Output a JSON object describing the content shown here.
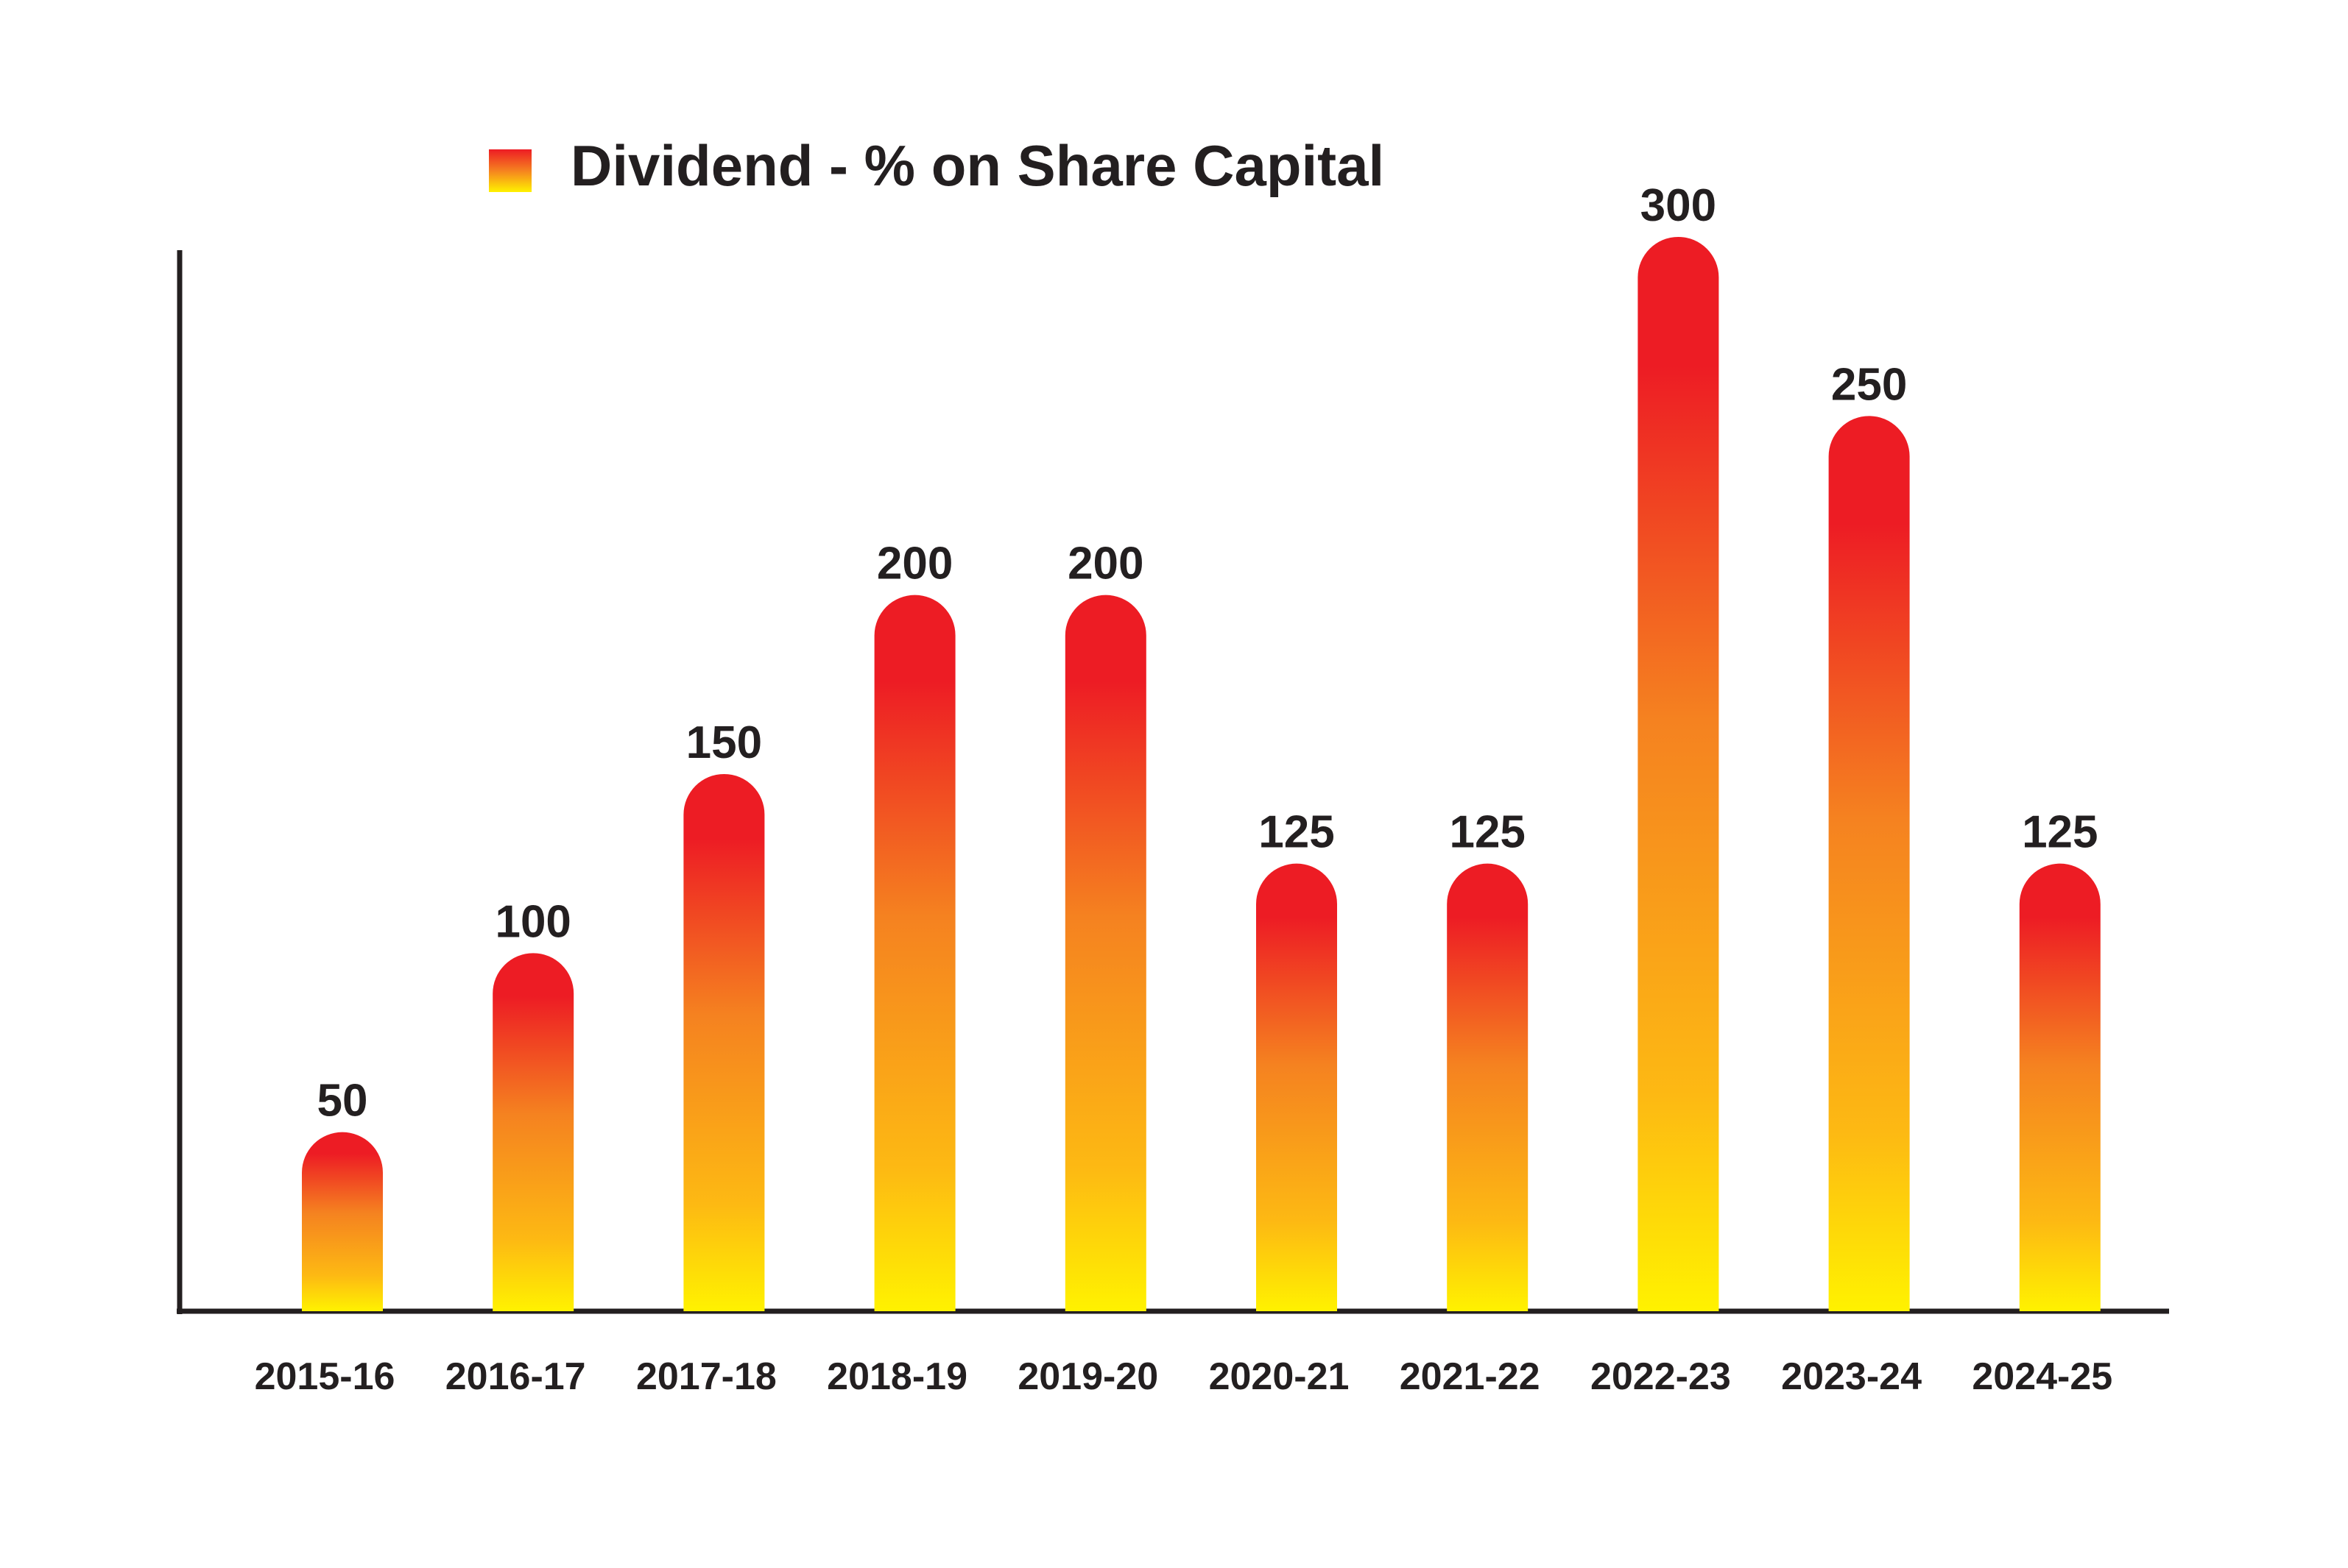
{
  "chart_data": {
    "type": "bar",
    "legend": {
      "label": "Dividend - % on Share Capital",
      "placement": "top-center"
    },
    "categories": [
      "2015-16",
      "2016-17",
      "2017-18",
      "2018-19",
      "2019-20",
      "2020-21",
      "2021-22",
      "2022-23",
      "2023-24",
      "2024-25"
    ],
    "series": [
      {
        "name": "Dividend - % on Share Capital",
        "values": [
          50,
          100,
          150,
          200,
          200,
          125,
          125,
          300,
          250,
          125
        ]
      }
    ],
    "data_labels": [
      "50",
      "100",
      "150",
      "200",
      "200",
      "125",
      "125",
      "300",
      "250",
      "125"
    ],
    "ylim": [
      0,
      300
    ],
    "grid": false,
    "colors": {
      "bar_top": "#ed1c24",
      "bar_mid": "#f58220",
      "bar_bottom": "#fff200",
      "axis": "#231f20",
      "text": "#231f20"
    }
  }
}
